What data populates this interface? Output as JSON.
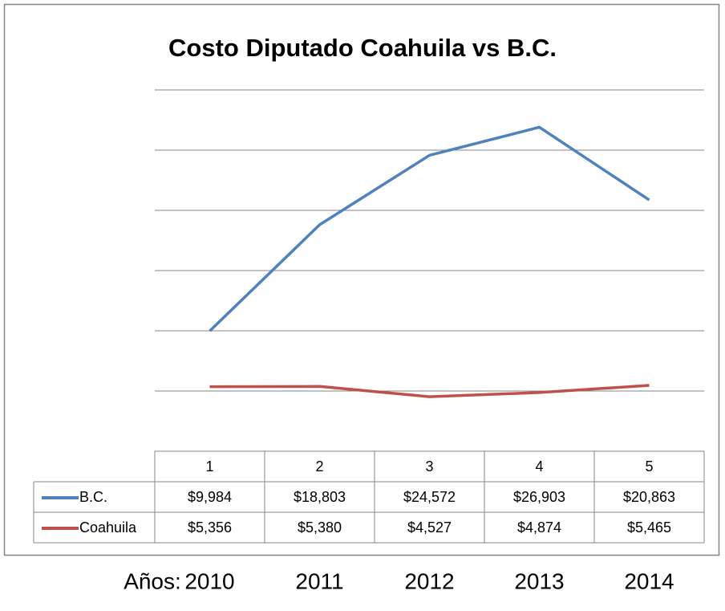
{
  "chart_data": {
    "type": "line",
    "title": "Costo Diputado Coahuila vs B.C.",
    "categories": [
      "1",
      "2",
      "3",
      "4",
      "5"
    ],
    "series": [
      {
        "name": "B.C.",
        "color": "#4f81bd",
        "values": [
          9984,
          18803,
          24572,
          26903,
          20863
        ],
        "value_labels": [
          "$9,984",
          "$18,803",
          "$24,572",
          "$26,903",
          "$20,863"
        ]
      },
      {
        "name": "Coahuila",
        "color": "#c0504d",
        "values": [
          5356,
          5380,
          4527,
          4874,
          5465
        ],
        "value_labels": [
          "$5,356",
          "$5,380",
          "$4,527",
          "$4,874",
          "$5,465"
        ]
      }
    ],
    "ylim": [
      0,
      30000
    ],
    "yticks": [
      5000,
      10000,
      15000,
      20000,
      25000,
      30000
    ],
    "grid": true,
    "xlabel": "Años:",
    "year_labels": [
      "2010",
      "2011",
      "2012",
      "2013",
      "2014"
    ]
  }
}
